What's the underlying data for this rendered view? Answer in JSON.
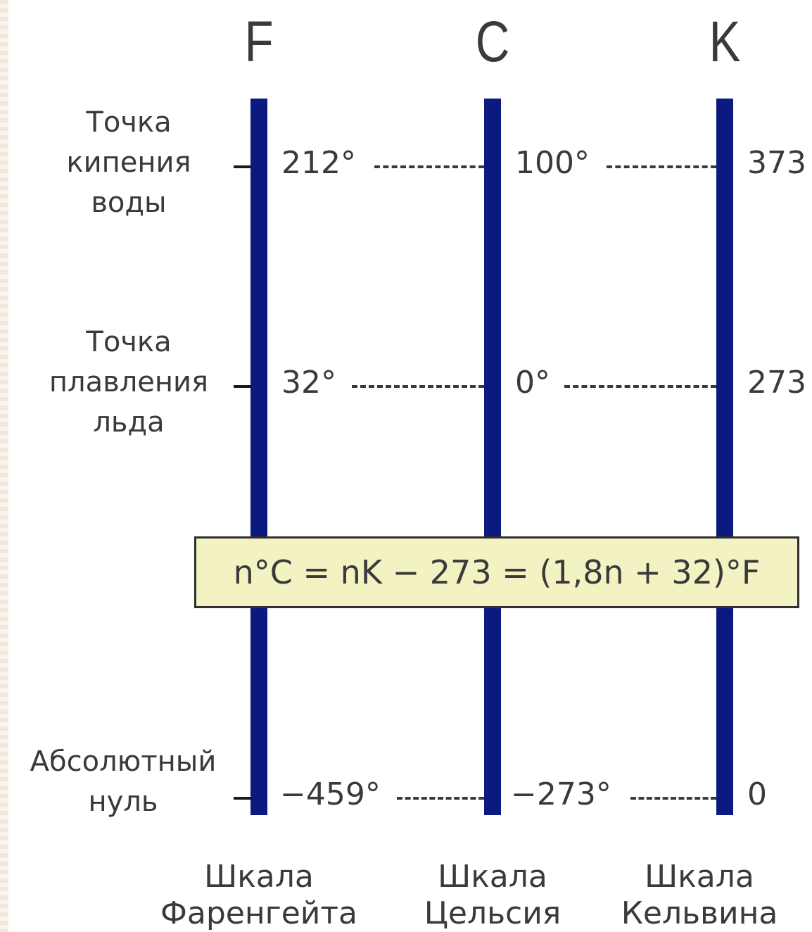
{
  "scales": [
    {
      "letter": "F",
      "name_line1": "Шкала",
      "name_line2": "Фаренгейта"
    },
    {
      "letter": "C",
      "name_line1": "Шкала",
      "name_line2": "Цельсия"
    },
    {
      "letter": "K",
      "name_line1": "Шкала",
      "name_line2": "Кельвина"
    }
  ],
  "points": [
    {
      "label_lines": [
        "Точка",
        "кипения",
        "воды"
      ],
      "f": "212°",
      "c": "100°",
      "k": "373"
    },
    {
      "label_lines": [
        "Точка",
        "плавления",
        "льда"
      ],
      "f": "32°",
      "c": "0°",
      "k": "273"
    },
    {
      "label_lines": [
        "Абсолютный",
        "нуль"
      ],
      "f": "−459°",
      "c": "−273°",
      "k": "0"
    }
  ],
  "formula": "n°C = nK − 273 = (1,8n + 32)°F",
  "colors": {
    "bar": "#0c1a80",
    "formula_bg": "#f3f2c3",
    "text": "#3a3a3a"
  }
}
